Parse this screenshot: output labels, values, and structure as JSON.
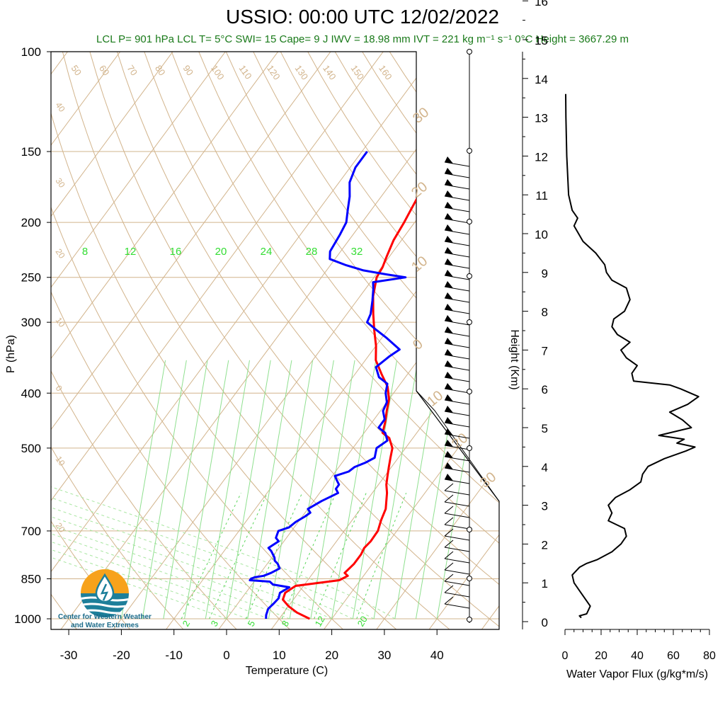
{
  "title": "USSIO: 00:00 UTC 12/02/2022",
  "subtitle": "LCL P= 901 hPa  LCL T= 5°C  SWI= 15  Cape= 9 J  IWV = 18.98 mm  IVT = 221 kg m⁻¹ s⁻¹  0°C Height = 3667.29 m",
  "logo": {
    "line1": "Center for Western Weather",
    "line2": "and Water Extremes"
  },
  "colors": {
    "temperature": "#ff0000",
    "dewpoint": "#0000ff",
    "grid": "#d2b48c",
    "mixing": "#33dd33",
    "flux": "#000000"
  },
  "chart_data": [
    {
      "type": "line",
      "title": "",
      "xlabel": "Temperature (C)",
      "ylabel": "P (hPa)",
      "pressure_ticks": [
        "100",
        "150",
        "200",
        "250",
        "300",
        "400",
        "500",
        "700",
        "850",
        "1000"
      ],
      "temperature_ticks": [
        "-30",
        "-20",
        "-10",
        "0",
        "10",
        "20",
        "30",
        "40"
      ],
      "mixing_ratio_labels": [
        "8",
        "12",
        "16",
        "20",
        "24",
        "28",
        "32"
      ],
      "mixing_ratio_bottom_labels": [
        "2",
        "3",
        "5",
        "8",
        "12",
        "20"
      ],
      "dry_adiabat_labels": [
        "50",
        "60",
        "70",
        "80",
        "90",
        "100",
        "110",
        "120",
        "130",
        "140",
        "150",
        "160"
      ],
      "left_isotherm_labels": [
        "40",
        "30",
        "20",
        "10",
        "0",
        "10",
        "20"
      ],
      "right_isotherm_labels": [
        "30",
        "20",
        "10",
        "0",
        "10",
        "20",
        "30"
      ],
      "series": [
        {
          "name": "Temperature",
          "points": [
            [
              1000,
              15.8
            ],
            [
              975,
              12.5
            ],
            [
              950,
              10
            ],
            [
              925,
              8
            ],
            [
              900,
              7.5
            ],
            [
              875,
              8.5
            ],
            [
              855,
              16
            ],
            [
              840,
              17
            ],
            [
              830,
              16
            ],
            [
              800,
              16.5
            ],
            [
              770,
              16.5
            ],
            [
              750,
              16.2
            ],
            [
              730,
              16.5
            ],
            [
              700,
              16.4
            ],
            [
              670,
              15.5
            ],
            [
              640,
              14.8
            ],
            [
              600,
              12.8
            ],
            [
              580,
              11.5
            ],
            [
              560,
              10.5
            ],
            [
              540,
              9.5
            ],
            [
              520,
              8.5
            ],
            [
              500,
              7.5
            ],
            [
              480,
              5.5
            ],
            [
              470,
              3.5
            ],
            [
              450,
              2.5
            ],
            [
              430,
              1.2
            ],
            [
              410,
              0
            ],
            [
              390,
              -2
            ],
            [
              370,
              -5
            ],
            [
              350,
              -8
            ],
            [
              330,
              -10
            ],
            [
              310,
              -12.5
            ],
            [
              290,
              -15
            ],
            [
              270,
              -17.5
            ],
            [
              250,
              -19.5
            ],
            [
              240,
              -19.8
            ],
            [
              230,
              -20.5
            ],
            [
              215,
              -21.5
            ],
            [
              200,
              -22
            ],
            [
              190,
              -22.5
            ],
            [
              180,
              -23
            ],
            [
              170,
              -24
            ],
            [
              160,
              -22.5
            ],
            [
              155,
              -22.5
            ],
            [
              150,
              -22
            ]
          ]
        },
        {
          "name": "Dewpoint",
          "points": [
            [
              1000,
              7.5
            ],
            [
              985,
              7
            ],
            [
              960,
              6.5
            ],
            [
              940,
              6.8
            ],
            [
              920,
              7
            ],
            [
              900,
              6.5
            ],
            [
              880,
              7.5
            ],
            [
              870,
              4
            ],
            [
              860,
              3
            ],
            [
              855,
              -1
            ],
            [
              850,
              -1
            ],
            [
              845,
              -0.5
            ],
            [
              840,
              1
            ],
            [
              830,
              2
            ],
            [
              815,
              3
            ],
            [
              800,
              2
            ],
            [
              790,
              1
            ],
            [
              780,
              0.5
            ],
            [
              760,
              -1
            ],
            [
              750,
              -2
            ],
            [
              730,
              -1
            ],
            [
              720,
              -2
            ],
            [
              700,
              -2.5
            ],
            [
              690,
              -1
            ],
            [
              675,
              -0.5
            ],
            [
              660,
              0.5
            ],
            [
              650,
              1
            ],
            [
              640,
              0
            ],
            [
              620,
              1.5
            ],
            [
              600,
              3.5
            ],
            [
              590,
              2.5
            ],
            [
              580,
              2.5
            ],
            [
              570,
              1.5
            ],
            [
              560,
              0.5
            ],
            [
              550,
              2.5
            ],
            [
              540,
              3
            ],
            [
              530,
              4.5
            ],
            [
              520,
              5.5
            ],
            [
              500,
              4.5
            ],
            [
              485,
              5.5
            ],
            [
              470,
              4
            ],
            [
              460,
              2
            ],
            [
              445,
              2
            ],
            [
              430,
              0.5
            ],
            [
              415,
              0
            ],
            [
              400,
              -1.5
            ],
            [
              385,
              -2.5
            ],
            [
              375,
              -5
            ],
            [
              360,
              -7
            ],
            [
              345,
              -6
            ],
            [
              335,
              -5
            ],
            [
              320,
              -9
            ],
            [
              310,
              -12
            ],
            [
              300,
              -15
            ],
            [
              290,
              -15.5
            ],
            [
              275,
              -17
            ],
            [
              262,
              -18.5
            ],
            [
              255,
              -19.5
            ],
            [
              250,
              -14
            ],
            [
              247,
              -18
            ],
            [
              243,
              -23
            ],
            [
              238,
              -27
            ],
            [
              232,
              -31
            ],
            [
              225,
              -32
            ],
            [
              210,
              -32.5
            ],
            [
              200,
              -33
            ],
            [
              190,
              -34.5
            ],
            [
              180,
              -36
            ],
            [
              170,
              -38
            ],
            [
              160,
              -39
            ],
            [
              150,
              -39
            ]
          ]
        },
        {
          "name": "Water Vapor Flux",
          "points": [
            [
              0.1,
              9
            ],
            [
              0.15,
              8
            ],
            [
              0.2,
              12
            ],
            [
              0.4,
              14
            ],
            [
              0.6,
              11
            ],
            [
              0.8,
              8
            ],
            [
              1.0,
              5
            ],
            [
              1.2,
              4
            ],
            [
              1.4,
              8
            ],
            [
              1.5,
              12
            ],
            [
              1.6,
              18
            ],
            [
              1.8,
              26
            ],
            [
              2.0,
              31
            ],
            [
              2.2,
              34
            ],
            [
              2.4,
              33
            ],
            [
              2.6,
              24
            ],
            [
              2.8,
              26
            ],
            [
              3.0,
              24
            ],
            [
              3.2,
              28
            ],
            [
              3.4,
              36
            ],
            [
              3.6,
              42
            ],
            [
              3.8,
              43
            ],
            [
              4.0,
              46
            ],
            [
              4.2,
              55
            ],
            [
              4.4,
              67
            ],
            [
              4.5,
              72
            ],
            [
              4.6,
              62
            ],
            [
              4.7,
              66
            ],
            [
              4.8,
              52
            ],
            [
              5.0,
              70
            ],
            [
              5.2,
              65
            ],
            [
              5.4,
              58
            ],
            [
              5.6,
              68
            ],
            [
              5.8,
              74
            ],
            [
              6.0,
              64
            ],
            [
              6.1,
              58
            ],
            [
              6.2,
              38
            ],
            [
              6.4,
              37
            ],
            [
              6.6,
              40
            ],
            [
              6.8,
              34
            ],
            [
              7.0,
              31
            ],
            [
              7.2,
              36
            ],
            [
              7.4,
              29
            ],
            [
              7.6,
              26
            ],
            [
              7.8,
              27
            ],
            [
              8.0,
              33
            ],
            [
              8.3,
              36
            ],
            [
              8.6,
              34
            ],
            [
              8.8,
              26
            ],
            [
              9.0,
              23
            ],
            [
              9.2,
              22
            ],
            [
              9.5,
              17
            ],
            [
              9.8,
              10
            ],
            [
              10.2,
              5
            ],
            [
              10.4,
              7
            ],
            [
              10.6,
              4
            ],
            [
              11.0,
              2
            ],
            [
              12.0,
              1
            ],
            [
              13.0,
              0.5
            ],
            [
              13.6,
              0.4
            ]
          ]
        }
      ],
      "wind_barbs": {
        "levels": 40
      }
    },
    {
      "type": "line",
      "title": "",
      "xlabel": "Water Vapor Flux (g/kg*m/s)",
      "ylabel": "Height (Km)",
      "x_ticks": [
        "0",
        "20",
        "40",
        "60",
        "80"
      ],
      "y_ticks": [
        "0",
        "1",
        "2",
        "3",
        "4",
        "5",
        "6",
        "7",
        "8",
        "9",
        "10",
        "11",
        "12",
        "13",
        "14",
        "15",
        "16"
      ],
      "xlim": [
        0,
        80
      ],
      "ylim": [
        0,
        16
      ]
    }
  ]
}
